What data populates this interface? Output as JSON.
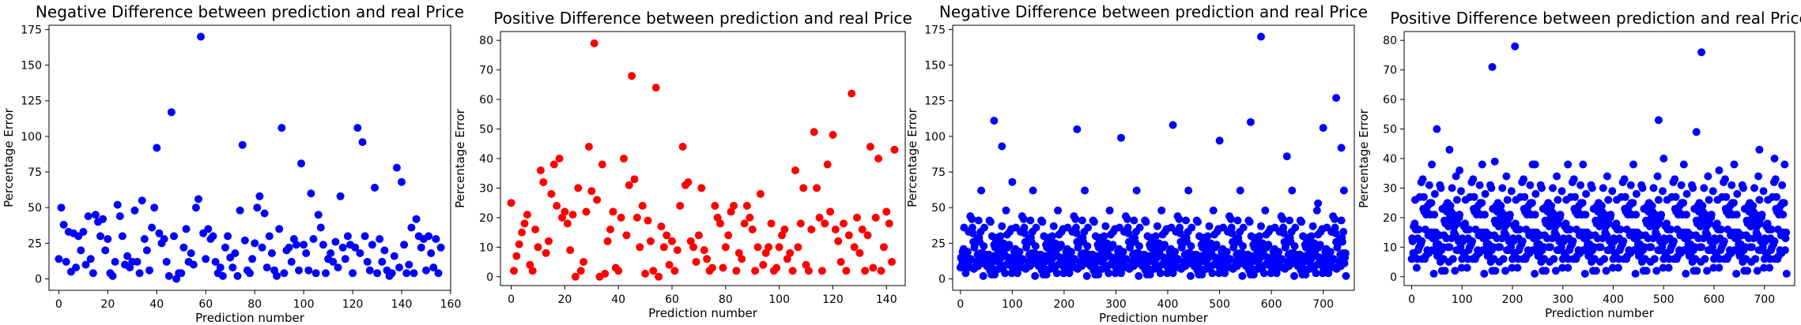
{
  "colors": {
    "blue": "#0000ff",
    "red": "#ff0000"
  },
  "chart_data": [
    {
      "type": "scatter",
      "title": "Negative Difference between prediction and real Price",
      "xlabel": "Prediction number",
      "ylabel": "Percentage Error",
      "xlim": [
        -4,
        160
      ],
      "ylim": [
        -8,
        178
      ],
      "xticks": [
        0,
        20,
        40,
        60,
        80,
        100,
        120,
        140,
        160
      ],
      "yticks": [
        0,
        25,
        50,
        75,
        100,
        125,
        150,
        175
      ],
      "color": "blue",
      "x": [
        0,
        1,
        2,
        3,
        4,
        5,
        6,
        7,
        8,
        9,
        10,
        11,
        12,
        13,
        14,
        15,
        16,
        17,
        18,
        19,
        20,
        21,
        22,
        23,
        24,
        25,
        26,
        27,
        28,
        29,
        30,
        31,
        32,
        33,
        34,
        35,
        36,
        37,
        38,
        39,
        40,
        41,
        42,
        43,
        44,
        45,
        46,
        47,
        48,
        49,
        50,
        51,
        52,
        53,
        54,
        55,
        56,
        57,
        58,
        59,
        60,
        61,
        62,
        63,
        64,
        65,
        66,
        67,
        68,
        69,
        70,
        71,
        72,
        73,
        74,
        75,
        76,
        77,
        78,
        79,
        80,
        81,
        82,
        83,
        84,
        85,
        86,
        87,
        88,
        89,
        90,
        91,
        92,
        93,
        94,
        95,
        96,
        97,
        98,
        99,
        100,
        101,
        102,
        103,
        104,
        105,
        106,
        107,
        108,
        109,
        110,
        111,
        112,
        113,
        114,
        115,
        116,
        117,
        118,
        119,
        120,
        121,
        122,
        123,
        124,
        125,
        126,
        127,
        128,
        129,
        130,
        131,
        132,
        133,
        134,
        135,
        136,
        137,
        138,
        139,
        140,
        141,
        142,
        143,
        144,
        145,
        146,
        147,
        148,
        149,
        150,
        151,
        152,
        153,
        154,
        155,
        156
      ],
      "y": [
        14,
        50,
        38,
        12,
        33,
        5,
        32,
        8,
        30,
        20,
        33,
        10,
        44,
        14,
        4,
        45,
        40,
        30,
        42,
        20,
        28,
        4,
        2,
        12,
        52,
        44,
        30,
        10,
        16,
        8,
        12,
        48,
        12,
        4,
        55,
        28,
        20,
        6,
        36,
        50,
        92,
        32,
        25,
        28,
        12,
        2,
        117,
        30,
        0,
        4,
        4,
        22,
        35,
        12,
        18,
        10,
        50,
        56,
        170,
        32,
        14,
        35,
        28,
        30,
        12,
        4,
        8,
        2,
        22,
        30,
        15,
        8,
        18,
        2,
        48,
        94,
        27,
        6,
        4,
        14,
        25,
        50,
        58,
        22,
        46,
        8,
        30,
        18,
        6,
        2,
        35,
        106,
        4,
        20,
        22,
        12,
        28,
        24,
        6,
        81,
        24,
        18,
        6,
        60,
        28,
        4,
        45,
        36,
        24,
        4,
        14,
        18,
        12,
        26,
        8,
        58,
        22,
        14,
        30,
        24,
        4,
        22,
        106,
        18,
        96,
        30,
        12,
        6,
        24,
        64,
        4,
        28,
        12,
        20,
        6,
        2,
        4,
        16,
        78,
        8,
        68,
        24,
        4,
        10,
        36,
        4,
        42,
        30,
        22,
        28,
        6,
        30,
        18,
        8,
        28,
        4,
        22
      ]
    },
    {
      "type": "scatter",
      "title": "Positive Difference between prediction and real Price",
      "xlabel": "Prediction number",
      "ylabel": "Percentage Error",
      "xlim": [
        -4,
        147
      ],
      "ylim": [
        -3,
        83
      ],
      "xticks": [
        0,
        20,
        40,
        60,
        80,
        100,
        120,
        140
      ],
      "yticks": [
        0,
        10,
        20,
        30,
        40,
        50,
        60,
        70,
        80
      ],
      "color": "red",
      "x": [
        0,
        1,
        2,
        3,
        4,
        5,
        6,
        7,
        8,
        9,
        10,
        11,
        12,
        13,
        14,
        15,
        16,
        17,
        18,
        19,
        20,
        21,
        22,
        23,
        24,
        25,
        26,
        27,
        28,
        29,
        30,
        31,
        32,
        33,
        34,
        35,
        36,
        37,
        38,
        39,
        40,
        41,
        42,
        43,
        44,
        45,
        46,
        47,
        48,
        49,
        50,
        51,
        52,
        53,
        54,
        55,
        56,
        57,
        58,
        59,
        60,
        61,
        62,
        63,
        64,
        65,
        66,
        67,
        68,
        69,
        70,
        71,
        72,
        73,
        74,
        75,
        76,
        77,
        78,
        79,
        80,
        81,
        82,
        83,
        84,
        85,
        86,
        87,
        88,
        89,
        90,
        91,
        92,
        93,
        94,
        95,
        96,
        97,
        98,
        99,
        100,
        101,
        102,
        103,
        104,
        105,
        106,
        107,
        108,
        109,
        110,
        111,
        112,
        113,
        114,
        115,
        116,
        117,
        118,
        119,
        120,
        121,
        122,
        123,
        124,
        125,
        126,
        127,
        128,
        129,
        130,
        131,
        132,
        133,
        134,
        135,
        136,
        137,
        138,
        139,
        140,
        141,
        142,
        143
      ],
      "y": [
        25,
        2,
        7,
        11,
        15,
        18,
        21,
        4,
        2,
        16,
        10,
        36,
        32,
        8,
        12,
        28,
        38,
        24,
        40,
        20,
        22,
        18,
        9,
        21,
        0,
        30,
        2,
        5,
        22,
        44,
        29,
        79,
        26,
        0,
        38,
        1,
        12,
        16,
        22,
        3,
        2,
        20,
        40,
        14,
        31,
        68,
        33,
        20,
        10,
        24,
        1,
        19,
        12,
        2,
        64,
        0,
        17,
        10,
        14,
        4,
        12,
        2,
        9,
        24,
        44,
        31,
        32,
        12,
        10,
        5,
        14,
        30,
        9,
        6,
        2,
        3,
        24,
        20,
        18,
        3,
        10,
        14,
        22,
        24,
        2,
        8,
        6,
        18,
        24,
        20,
        16,
        2,
        10,
        28,
        4,
        8,
        10,
        18,
        2,
        3,
        10,
        14,
        16,
        6,
        8,
        2,
        36,
        10,
        18,
        30,
        4,
        2,
        16,
        49,
        30,
        20,
        2,
        18,
        38,
        22,
        48,
        16,
        12,
        5,
        18,
        2,
        14,
        62,
        10,
        20,
        8,
        16,
        2,
        14,
        44,
        3,
        20,
        40,
        2,
        10,
        22,
        18,
        5,
        43
      ]
    },
    {
      "type": "scatter",
      "title": "Negative Difference between prediction and real Price",
      "xlabel": "Prediction number",
      "ylabel": "Percentage Error",
      "xlim": [
        -15,
        760
      ],
      "ylim": [
        -8,
        178
      ],
      "xticks": [
        0,
        100,
        200,
        300,
        400,
        500,
        600,
        700
      ],
      "yticks": [
        0,
        25,
        50,
        75,
        100,
        125,
        150,
        175
      ],
      "color": "blue",
      "highlights": [
        [
          65,
          111
        ],
        [
          80,
          93
        ],
        [
          100,
          68
        ],
        [
          225,
          105
        ],
        [
          310,
          99
        ],
        [
          410,
          108
        ],
        [
          500,
          97
        ],
        [
          560,
          110
        ],
        [
          580,
          170
        ],
        [
          630,
          86
        ],
        [
          700,
          106
        ],
        [
          725,
          127
        ],
        [
          735,
          92
        ],
        [
          690,
          53
        ]
      ],
      "n": 745,
      "y": [
        8,
        22,
        4,
        30,
        12,
        6,
        40,
        15,
        2,
        18,
        26,
        9,
        33,
        5,
        14,
        20,
        48,
        11,
        7,
        24,
        3,
        16,
        36,
        10,
        28,
        6,
        13,
        44,
        19,
        2,
        31,
        8,
        22,
        55,
        12,
        4,
        17,
        27,
        9,
        38,
        14,
        6,
        21,
        3,
        11,
        34,
        25,
        7,
        16,
        50,
        10,
        2,
        29,
        13,
        42,
        8,
        19,
        5,
        24,
        15,
        37,
        9,
        3,
        26,
        12,
        58,
        18,
        6,
        32,
        11,
        4,
        22,
        14,
        46,
        8,
        17,
        28,
        3,
        10,
        20,
        62,
        13,
        7,
        25,
        16,
        5,
        35,
        9,
        18,
        2,
        27,
        12,
        41,
        6,
        15,
        23,
        8,
        30,
        19,
        4
      ]
    },
    {
      "type": "scatter",
      "title": "Positive Difference between prediction and real Price",
      "xlabel": "Prediction number",
      "ylabel": "Percentage Error",
      "xlim": [
        -15,
        760
      ],
      "ylim": [
        -3,
        83
      ],
      "xticks": [
        0,
        100,
        200,
        300,
        400,
        500,
        600,
        700
      ],
      "yticks": [
        0,
        10,
        20,
        30,
        40,
        50,
        60,
        70,
        80
      ],
      "color": "blue",
      "highlights": [
        [
          50,
          50
        ],
        [
          75,
          43
        ],
        [
          95,
          36
        ],
        [
          160,
          71
        ],
        [
          165,
          39
        ],
        [
          205,
          78
        ],
        [
          245,
          38
        ],
        [
          310,
          38
        ],
        [
          490,
          53
        ],
        [
          500,
          40
        ],
        [
          565,
          49
        ],
        [
          575,
          76
        ],
        [
          610,
          36
        ],
        [
          690,
          43
        ],
        [
          720,
          40
        ]
      ],
      "n": 745,
      "y": [
        6,
        18,
        2,
        25,
        10,
        4,
        30,
        13,
        1,
        16,
        22,
        8,
        27,
        3,
        12,
        19,
        34,
        7,
        5,
        21,
        2,
        14,
        28,
        9,
        24,
        4,
        11,
        32,
        17,
        1,
        26,
        6,
        20,
        36,
        10,
        3,
        15,
        23,
        8,
        29,
        12,
        5,
        18,
        2,
        9,
        28,
        22,
        6,
        14,
        31,
        8,
        1,
        25,
        11,
        33,
        7,
        16,
        4,
        20,
        13,
        30,
        8,
        2,
        23,
        10,
        35,
        15,
        5,
        27,
        9,
        3,
        19,
        12,
        33,
        6,
        14,
        24,
        2,
        8,
        17,
        38,
        11,
        6,
        21,
        13,
        4,
        29,
        8,
        15,
        1,
        22,
        10,
        31,
        5,
        13,
        19,
        7,
        26,
        16,
        3
      ]
    }
  ]
}
